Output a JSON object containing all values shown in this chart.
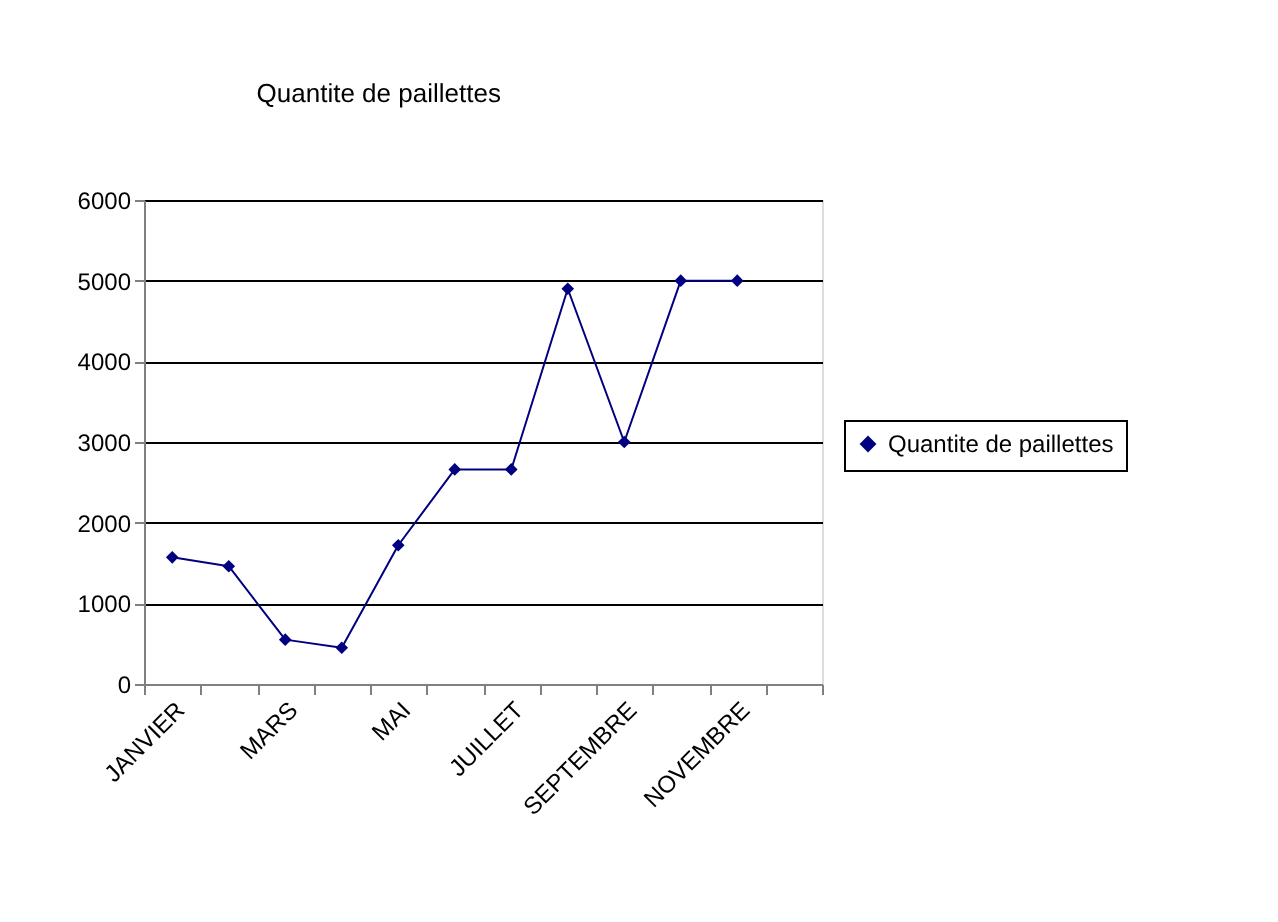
{
  "chart_data": {
    "type": "line",
    "title": "Quantite de paillettes",
    "categories": [
      "JANVIER",
      null,
      "MARS",
      null,
      "MAI",
      null,
      "JUILLET",
      null,
      "SEPTEMBRE",
      null,
      "NOVEMBRE",
      null
    ],
    "series": [
      {
        "name": "Quantite de paillettes",
        "color": "#000080",
        "values": [
          1570,
          1460,
          550,
          450,
          1720,
          2660,
          2660,
          4900,
          3000,
          5000,
          5000,
          null
        ]
      }
    ],
    "ylim": [
      0,
      6000
    ],
    "yticks": [
      0,
      1000,
      2000,
      3000,
      4000,
      5000,
      6000
    ],
    "grid": "y",
    "legend": "right",
    "marker": "diamond",
    "line_style": "solid"
  }
}
